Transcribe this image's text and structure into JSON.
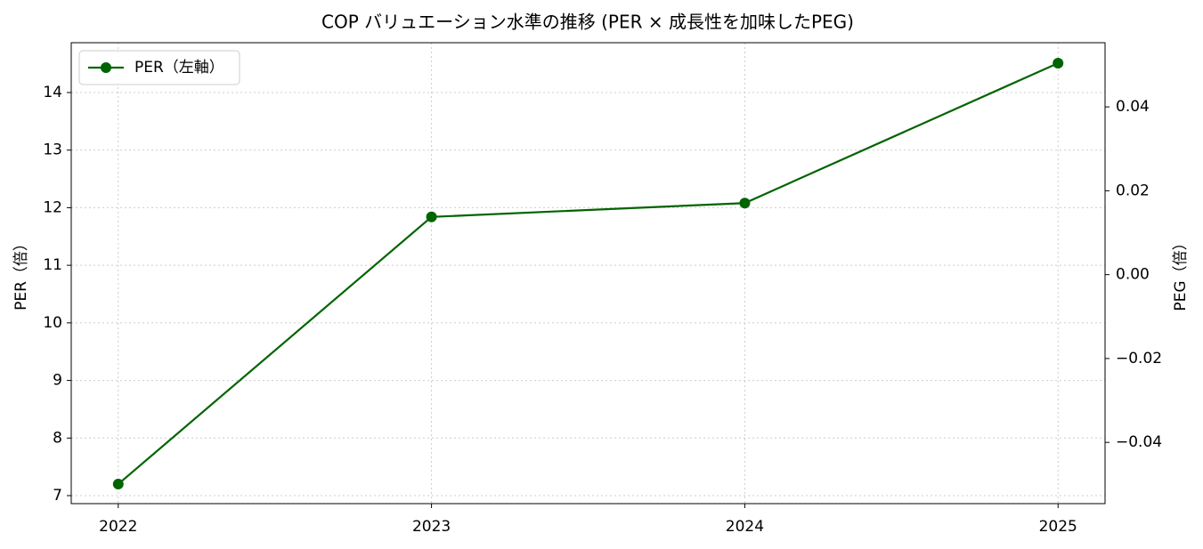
{
  "chart_data": {
    "type": "line",
    "title": "COP バリュエーション水準の推移 (PER × 成長性を加味したPEG)",
    "x": [
      2022,
      2023,
      2024,
      2025
    ],
    "xlim": [
      2021.85,
      2025.15
    ],
    "xticks": [
      2022,
      2023,
      2024,
      2025
    ],
    "ylabel": "PER（倍）",
    "y2label": "PEG（倍）",
    "ylim": [
      6.861,
      14.865
    ],
    "yticks": [
      7,
      8,
      9,
      10,
      11,
      12,
      13,
      14
    ],
    "y2lim": [
      -0.0546,
      0.0553
    ],
    "y2ticks": [
      {
        "value": -0.04,
        "label": "−0.04"
      },
      {
        "value": -0.02,
        "label": "−0.02"
      },
      {
        "value": 0,
        "label": "0.00"
      },
      0.02,
      0.04
    ],
    "grid": true,
    "legend": "upper left",
    "series": [
      {
        "name": "PER（左軸）",
        "color": "#006400",
        "values": [
          7.2,
          11.84,
          12.08,
          14.51
        ]
      }
    ]
  }
}
